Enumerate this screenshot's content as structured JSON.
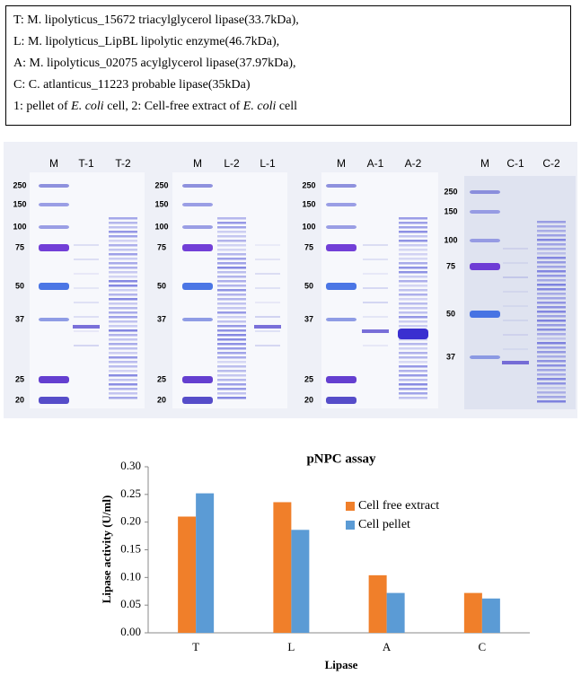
{
  "legend": {
    "lines": [
      "T: M. lipolyticus_15672 triacylglycerol lipase(33.7kDa),",
      "L: M. lipolyticus_LipBL lipolytic enzyme(46.7kDa),",
      "A: M. lipolyticus_02075 acylglycerol lipase(37.97kDa),",
      "C: C. atlanticus_11223 probable lipase(35kDa)"
    ],
    "last_line": [
      "1: pellet of ",
      "E. coli",
      " cell, 2: Cell-free extract of ",
      "E. coli",
      " cell"
    ]
  },
  "gels": [
    {
      "lanes": [
        "M",
        "T-1",
        "T-2"
      ],
      "markers": [
        "250",
        "150",
        "100",
        "75",
        "50",
        "37",
        "25",
        "20"
      ]
    },
    {
      "lanes": [
        "M",
        "L-2",
        "L-1"
      ],
      "markers": [
        "250",
        "150",
        "100",
        "75",
        "50",
        "37",
        "25",
        "20"
      ]
    },
    {
      "lanes": [
        "M",
        "A-1",
        "A-2"
      ],
      "markers": [
        "250",
        "150",
        "100",
        "75",
        "50",
        "37",
        "25",
        "20"
      ]
    },
    {
      "lanes": [
        "M",
        "C-1",
        "C-2"
      ],
      "markers": [
        "250",
        "150",
        "100",
        "75",
        "50",
        "37"
      ]
    }
  ],
  "chart_data": {
    "type": "bar",
    "title": "pNPC assay",
    "x_label": "Lipase",
    "y_label": "Lipase activity (U/ml)",
    "categories": [
      "T",
      "L",
      "A",
      "C"
    ],
    "series": [
      {
        "name": "Cell free extract",
        "color": "#f07f2a",
        "values": [
          0.21,
          0.236,
          0.104,
          0.072
        ]
      },
      {
        "name": "Cell pellet",
        "color": "#5b9bd5",
        "values": [
          0.252,
          0.186,
          0.072,
          0.062
        ]
      }
    ],
    "ylim": [
      0,
      0.3
    ],
    "yticks": [
      {
        "value": 0,
        "label": "0.00"
      },
      {
        "value": 0.05,
        "label": "0.05"
      },
      {
        "value": 0.1,
        "label": "0.10"
      },
      {
        "value": 0.15,
        "label": "0.15"
      },
      {
        "value": 0.2,
        "label": "0.20"
      },
      {
        "value": 0.25,
        "label": "0.25"
      },
      {
        "value": 0.3,
        "label": "0.30"
      }
    ],
    "legend_position": "right",
    "grid": false
  }
}
